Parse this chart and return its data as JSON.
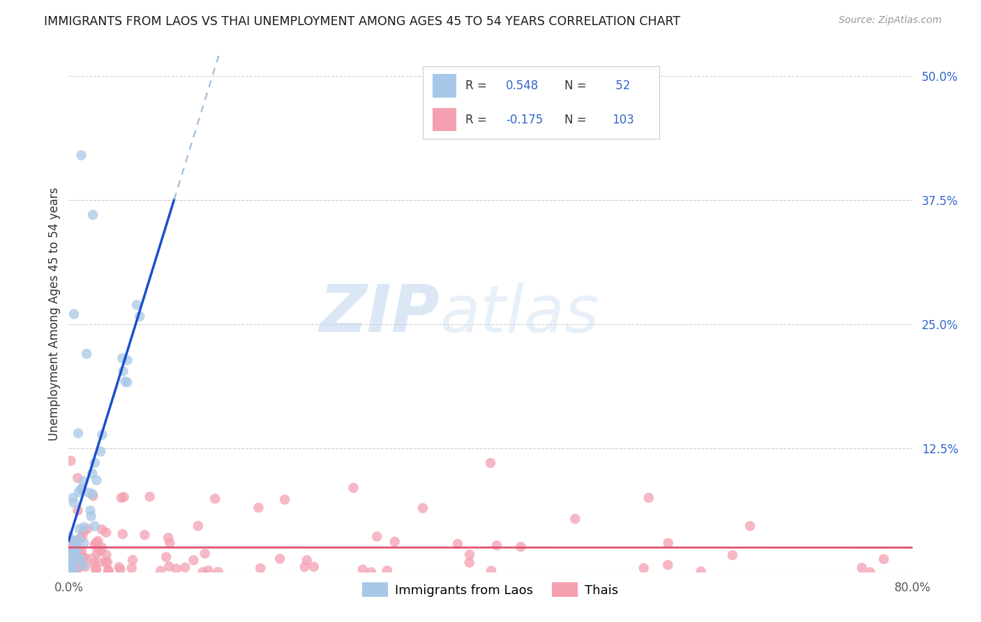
{
  "title": "IMMIGRANTS FROM LAOS VS THAI UNEMPLOYMENT AMONG AGES 45 TO 54 YEARS CORRELATION CHART",
  "source": "Source: ZipAtlas.com",
  "ylabel": "Unemployment Among Ages 45 to 54 years",
  "xlim": [
    0.0,
    0.8
  ],
  "ylim": [
    0.0,
    0.52
  ],
  "color_blue": "#a8c8e8",
  "color_pink": "#f4a0b0",
  "color_blue_line": "#1a4fcc",
  "color_pink_line": "#e05070",
  "color_dashed": "#99bbdd",
  "watermark_zip": "ZIP",
  "watermark_atlas": "atlas",
  "r1": "0.548",
  "n1": "52",
  "r2": "-0.175",
  "n2": "103"
}
